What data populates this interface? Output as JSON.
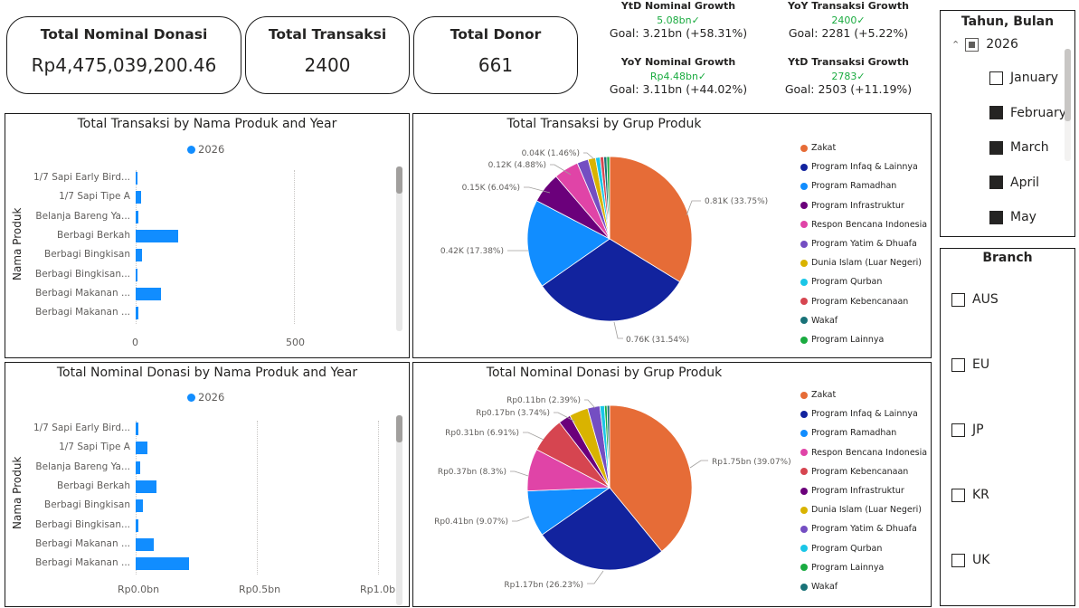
{
  "cards": [
    {
      "title": "Total Nominal Donasi",
      "value": "Rp4,475,039,200.46"
    },
    {
      "title": "Total Transaksi",
      "value": "2400"
    },
    {
      "title": "Total Donor",
      "value": "661"
    }
  ],
  "kpis": [
    {
      "title": "YtD Nominal Growth",
      "value": "5.08bn✓",
      "goal": "Goal: 3.21bn (+58.31%)"
    },
    {
      "title": "YoY Transaksi Growth",
      "value": "2400✓",
      "goal": "Goal: 2281 (+5.22%)"
    },
    {
      "title": "YoY Nominal Growth",
      "value": "Rp4.48bn✓",
      "goal": "Goal: 3.11bn (+44.02%)"
    },
    {
      "title": "YtD Transaksi Growth",
      "value": "2783✓",
      "goal": "Goal: 2503 (+11.19%)"
    }
  ],
  "colors": {
    "bar": "#118dff",
    "kpi_positive": "#1aab40",
    "zakat": "#e66c37",
    "program_infaq": "#12239e",
    "program_ramadhan": "#118dff",
    "program_infrastruktur": "#6b007b",
    "respon_bencana": "#e044a7",
    "program_yatim": "#744ec2",
    "dunia_islam": "#d9b300",
    "program_qurban": "#1ac6e7",
    "program_kebencanaan": "#d64550",
    "wakaf": "#197278",
    "program_lainnya": "#1aab40"
  },
  "charts": {
    "transaksi_bar": {
      "title": "Total Transaksi by Nama Produk and Year",
      "legend": "2026",
      "axis_title": "Nama Produk",
      "ticks": [
        "0",
        "500"
      ]
    },
    "transaksi_pie": {
      "title": "Total Transaksi by Grup Produk",
      "labels": [
        "0.81K (33.75%)",
        "0.76K (31.54%)",
        "0.42K (17.38%)",
        "0.15K (6.04%)",
        "0.12K (4.88%)",
        "0.04K (1.46%)"
      ],
      "legend": [
        "Zakat",
        "Program Infaq & Lainnya",
        "Program Ramadhan",
        "Program Infrastruktur",
        "Respon Bencana Indonesia",
        "Program Yatim & Dhuafa",
        "Dunia Islam (Luar Negeri)",
        "Program Qurban",
        "Program Kebencanaan",
        "Wakaf",
        "Program Lainnya"
      ]
    },
    "nominal_bar": {
      "title": "Total Nominal Donasi by Nama Produk and Year",
      "legend": "2026",
      "axis_title": "Nama Produk",
      "ticks": [
        "Rp0.0bn",
        "Rp0.5bn",
        "Rp1.0bn"
      ]
    },
    "nominal_pie": {
      "title": "Total Nominal Donasi by Grup Produk",
      "labels": [
        "Rp1.75bn (39.07%)",
        "Rp1.17bn (26.23%)",
        "Rp0.41bn (9.07%)",
        "Rp0.37bn (8.3%)",
        "Rp0.31bn (6.91%)",
        "Rp0.17bn (3.74%)",
        "Rp0.11bn (2.39%)"
      ],
      "legend": [
        "Zakat",
        "Program Infaq & Lainnya",
        "Program Ramadhan",
        "Respon Bencana Indonesia",
        "Program Kebencanaan",
        "Program Infrastruktur",
        "Dunia Islam (Luar Negeri)",
        "Program Yatim & Dhuafa",
        "Program Qurban",
        "Program Lainnya",
        "Wakaf"
      ]
    }
  },
  "chart_data": [
    {
      "type": "bar",
      "title": "Total Transaksi by Nama Produk and Year",
      "ylabel": "Nama Produk",
      "series": [
        {
          "name": "2026",
          "values": [
            4,
            18,
            8,
            142,
            20,
            4,
            86,
            10
          ]
        }
      ],
      "categories": [
        "1/7 Sapi Early Bird...",
        "1/7 Sapi Tipe A",
        "Belanja Bareng Ya...",
        "Berbagi Berkah",
        "Berbagi Bingkisan",
        "Berbagi Bingkisan...",
        "Berbagi Makanan ...",
        "Berbagi Makanan ..."
      ],
      "xlim": [
        0,
        850
      ]
    },
    {
      "type": "pie",
      "title": "Total Transaksi by Grup Produk",
      "categories": [
        "Zakat",
        "Program Infaq & Lainnya",
        "Program Ramadhan",
        "Program Infrastruktur",
        "Respon Bencana Indonesia",
        "Program Yatim & Dhuafa",
        "Dunia Islam (Luar Negeri)",
        "Program Qurban",
        "Program Kebencanaan",
        "Wakaf",
        "Program Lainnya"
      ],
      "values": [
        33.75,
        31.54,
        17.38,
        6.04,
        4.88,
        2.2,
        1.46,
        0.9,
        0.7,
        0.6,
        0.55
      ]
    },
    {
      "type": "bar",
      "title": "Total Nominal Donasi by Nama Produk and Year",
      "ylabel": "Nama Produk",
      "series": [
        {
          "name": "2026",
          "values": [
            0.01,
            0.05,
            0.02,
            0.09,
            0.03,
            0.01,
            0.08,
            0.23
          ]
        }
      ],
      "categories": [
        "1/7 Sapi Early Bird...",
        "1/7 Sapi Tipe A",
        "Belanja Bareng Ya...",
        "Berbagi Berkah",
        "Berbagi Bingkisan",
        "Berbagi Bingkisan...",
        "Berbagi Makanan ...",
        "Berbagi Makanan ..."
      ],
      "xlim": [
        0,
        1.1
      ]
    },
    {
      "type": "pie",
      "title": "Total Nominal Donasi by Grup Produk",
      "categories": [
        "Zakat",
        "Program Infaq & Lainnya",
        "Program Ramadhan",
        "Respon Bencana Indonesia",
        "Program Kebencanaan",
        "Program Infrastruktur",
        "Dunia Islam (Luar Negeri)",
        "Program Yatim & Dhuafa",
        "Program Qurban",
        "Program Lainnya",
        "Wakaf"
      ],
      "values": [
        39.07,
        26.23,
        9.07,
        8.3,
        6.91,
        2.39,
        3.74,
        2.39,
        0.9,
        0.5,
        0.5
      ]
    }
  ],
  "slicer_date": {
    "title": "Tahun, Bulan",
    "year": "2026",
    "months": [
      {
        "label": "January",
        "checked": false
      },
      {
        "label": "February",
        "checked": true
      },
      {
        "label": "March",
        "checked": true
      },
      {
        "label": "April",
        "checked": true
      },
      {
        "label": "May",
        "checked": true
      }
    ]
  },
  "slicer_branch": {
    "title": "Branch",
    "items": [
      "AUS",
      "EU",
      "JP",
      "KR",
      "UK"
    ]
  }
}
